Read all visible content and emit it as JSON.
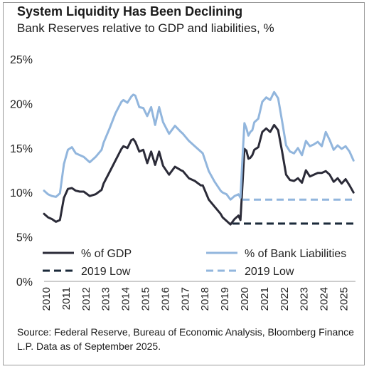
{
  "chart_data": {
    "type": "line",
    "title": "System Liquidity Has Been Declining",
    "subtitle": "Bank Reserves relative to GDP and liabilities, %",
    "source": "Source: Federal Reserve, Bureau of Economic Analysis, Bloomberg Finance L.P. Data as of September 2025.",
    "xlabel": "",
    "ylabel": "",
    "xlim": [
      2010,
      2025.7
    ],
    "ylim": [
      0,
      25
    ],
    "y_ticks": [
      0,
      5,
      10,
      15,
      20,
      25
    ],
    "y_tick_labels": [
      "0%",
      "5%",
      "10%",
      "15%",
      "20%",
      "25%"
    ],
    "x_ticks": [
      2010,
      2011,
      2012,
      2013,
      2014,
      2015,
      2016,
      2017,
      2018,
      2019,
      2020,
      2021,
      2022,
      2023,
      2024,
      2025
    ],
    "x_tick_labels": [
      "2010",
      "2011",
      "2012",
      "2013",
      "2014",
      "2015",
      "2016",
      "2017",
      "2018",
      "2019",
      "2020",
      "2021",
      "2022",
      "2023",
      "2024",
      "2025"
    ],
    "grid": false,
    "legend_position": "bottom",
    "series": [
      {
        "name": "% of GDP",
        "color": "#2b2b38",
        "dash": "solid",
        "x": [
          2010.0,
          2010.2,
          2010.4,
          2010.6,
          2010.8,
          2011.0,
          2011.2,
          2011.4,
          2011.6,
          2011.8,
          2012.0,
          2012.3,
          2012.6,
          2012.9,
          2013.0,
          2013.3,
          2013.6,
          2013.9,
          2014.0,
          2014.2,
          2014.4,
          2014.5,
          2014.6,
          2014.8,
          2015.0,
          2015.2,
          2015.4,
          2015.6,
          2015.8,
          2016.0,
          2016.3,
          2016.6,
          2016.9,
          2017.0,
          2017.3,
          2017.6,
          2017.9,
          2018.0,
          2018.3,
          2018.6,
          2018.9,
          2019.0,
          2019.2,
          2019.4,
          2019.6,
          2019.8,
          2019.9,
          2020.0,
          2020.1,
          2020.2,
          2020.3,
          2020.4,
          2020.5,
          2020.6,
          2020.8,
          2021.0,
          2021.2,
          2021.4,
          2021.6,
          2021.8,
          2022.0,
          2022.2,
          2022.4,
          2022.6,
          2022.8,
          2023.0,
          2023.2,
          2023.4,
          2023.6,
          2023.8,
          2024.0,
          2024.2,
          2024.4,
          2024.6,
          2024.8,
          2025.0,
          2025.2,
          2025.4,
          2025.6
        ],
        "values": [
          7.6,
          7.2,
          7.0,
          6.7,
          6.9,
          9.4,
          10.4,
          10.5,
          10.2,
          10.1,
          10.1,
          9.6,
          9.8,
          10.3,
          11.0,
          12.3,
          13.6,
          14.9,
          15.2,
          15.0,
          15.9,
          16.0,
          15.7,
          14.6,
          14.8,
          13.3,
          14.6,
          13.1,
          14.6,
          13.0,
          12.0,
          12.9,
          12.5,
          12.4,
          11.6,
          11.3,
          10.8,
          10.8,
          9.2,
          8.4,
          7.6,
          7.2,
          6.8,
          6.4,
          7.0,
          7.4,
          6.9,
          10.8,
          14.9,
          14.7,
          13.8,
          13.9,
          14.2,
          14.8,
          15.1,
          16.8,
          17.2,
          16.8,
          17.6,
          17.0,
          14.6,
          12.0,
          11.4,
          11.3,
          11.6,
          11.1,
          12.5,
          11.8,
          12.0,
          12.2,
          12.2,
          12.4,
          12.0,
          11.2,
          11.6,
          11.0,
          11.5,
          10.8,
          10.0
        ]
      },
      {
        "name": "% of Bank Liabilities",
        "color": "#92b6dd",
        "dash": "solid",
        "x": [
          2010.0,
          2010.2,
          2010.4,
          2010.6,
          2010.8,
          2011.0,
          2011.2,
          2011.4,
          2011.6,
          2011.8,
          2012.0,
          2012.3,
          2012.6,
          2012.9,
          2013.0,
          2013.3,
          2013.6,
          2013.9,
          2014.0,
          2014.2,
          2014.4,
          2014.5,
          2014.6,
          2014.8,
          2015.0,
          2015.2,
          2015.4,
          2015.6,
          2015.8,
          2016.0,
          2016.3,
          2016.6,
          2016.9,
          2017.0,
          2017.3,
          2017.6,
          2017.9,
          2018.0,
          2018.3,
          2018.6,
          2018.9,
          2019.0,
          2019.2,
          2019.4,
          2019.6,
          2019.8,
          2019.9,
          2020.0,
          2020.1,
          2020.2,
          2020.3,
          2020.4,
          2020.5,
          2020.6,
          2020.8,
          2021.0,
          2021.2,
          2021.4,
          2021.6,
          2021.8,
          2022.0,
          2022.2,
          2022.4,
          2022.6,
          2022.8,
          2023.0,
          2023.2,
          2023.4,
          2023.6,
          2023.8,
          2024.0,
          2024.2,
          2024.4,
          2024.6,
          2024.8,
          2025.0,
          2025.2,
          2025.4,
          2025.6
        ],
        "values": [
          10.2,
          9.8,
          9.6,
          9.5,
          9.9,
          13.2,
          14.8,
          15.1,
          14.4,
          14.2,
          14.0,
          13.4,
          14.0,
          14.8,
          15.6,
          17.2,
          18.9,
          20.2,
          20.4,
          20.1,
          20.8,
          21.0,
          20.9,
          19.6,
          19.5,
          18.6,
          19.6,
          17.6,
          19.6,
          17.9,
          16.6,
          17.5,
          16.8,
          16.6,
          15.8,
          15.2,
          14.6,
          14.4,
          12.4,
          11.2,
          10.2,
          10.0,
          9.8,
          9.2,
          9.6,
          9.8,
          9.4,
          13.8,
          17.8,
          17.2,
          16.4,
          16.8,
          17.0,
          17.9,
          18.3,
          20.2,
          20.7,
          20.4,
          21.3,
          20.6,
          18.0,
          15.3,
          14.6,
          14.4,
          15.0,
          14.2,
          15.8,
          15.2,
          15.4,
          15.7,
          15.2,
          16.8,
          15.9,
          14.8,
          15.3,
          14.9,
          15.2,
          14.6,
          13.6
        ]
      },
      {
        "name": "2019 Low",
        "color": "#1b2a3a",
        "dash": "dashed",
        "x": [
          2019.5,
          2025.6
        ],
        "values": [
          6.5,
          6.5
        ]
      },
      {
        "name": "2019 Low",
        "color": "#92b6dd",
        "dash": "dashed",
        "x": [
          2020.0,
          2025.6
        ],
        "values": [
          9.2,
          9.2
        ]
      }
    ],
    "legend": [
      {
        "label": "% of GDP",
        "color": "#2b2b38",
        "dash": "solid"
      },
      {
        "label": "% of Bank Liabilities",
        "color": "#92b6dd",
        "dash": "solid"
      },
      {
        "label": "2019 Low",
        "color": "#1b2a3a",
        "dash": "dashed"
      },
      {
        "label": "2019 Low",
        "color": "#92b6dd",
        "dash": "dashed"
      }
    ]
  }
}
